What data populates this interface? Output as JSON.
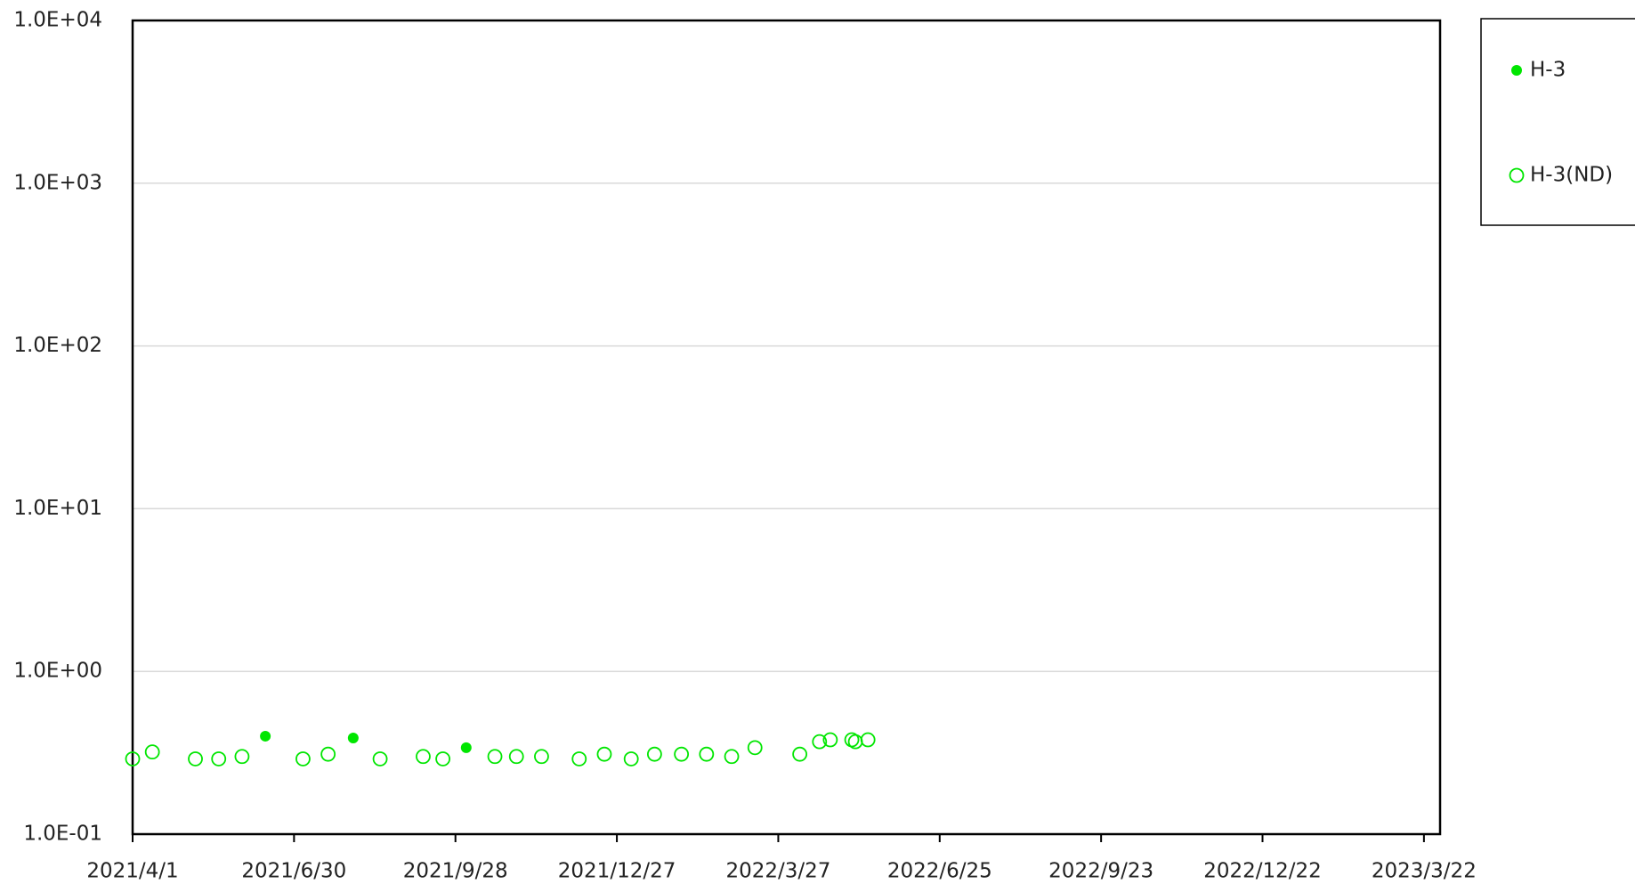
{
  "chart_data": {
    "type": "scatter",
    "x_format": "date",
    "xlim": [
      "2021/4/1",
      "2023/3/31"
    ],
    "xticks": [
      "2021/4/1",
      "2021/6/30",
      "2021/9/28",
      "2021/12/27",
      "2022/3/27",
      "2022/6/25",
      "2022/9/23",
      "2022/12/22",
      "2023/3/22"
    ],
    "ylim": [
      0.1,
      10000
    ],
    "yscale": "log",
    "yticks": [
      {
        "value": 0.1,
        "label": "1.0E-01"
      },
      {
        "value": 1,
        "label": "1.0E+00"
      },
      {
        "value": 10,
        "label": "1.0E+01"
      },
      {
        "value": 100,
        "label": "1.0E+02"
      },
      {
        "value": 1000,
        "label": "1.0E+03"
      },
      {
        "value": 10000,
        "label": "1.0E+04"
      }
    ],
    "grid": true,
    "legend": "top-right",
    "series": [
      {
        "name": "H-3",
        "color": "#00e600",
        "filled": true,
        "x": [
          "2021/6/14",
          "2021/8/2",
          "2021/10/4"
        ],
        "values": [
          0.4,
          0.39,
          0.34
        ]
      },
      {
        "name": "H-3(ND)",
        "color": "#00e600",
        "filled": false,
        "x": [
          "2021/4/1",
          "2021/4/12",
          "2021/5/6",
          "2021/5/19",
          "2021/6/1",
          "2021/7/5",
          "2021/7/19",
          "2021/8/17",
          "2021/9/10",
          "2021/9/21",
          "2021/10/20",
          "2021/11/1",
          "2021/11/15",
          "2021/12/6",
          "2021/12/20",
          "2022/1/4",
          "2022/1/17",
          "2022/2/1",
          "2022/2/15",
          "2022/3/1",
          "2022/3/14",
          "2022/4/8",
          "2022/4/19",
          "2022/4/25",
          "2022/5/7",
          "2022/5/9",
          "2022/5/16"
        ],
        "values": [
          0.29,
          0.32,
          0.29,
          0.29,
          0.3,
          0.29,
          0.31,
          0.29,
          0.3,
          0.29,
          0.3,
          0.3,
          0.3,
          0.29,
          0.31,
          0.29,
          0.31,
          0.31,
          0.31,
          0.3,
          0.34,
          0.31,
          0.37,
          0.38,
          0.38,
          0.37,
          0.38
        ]
      }
    ]
  }
}
